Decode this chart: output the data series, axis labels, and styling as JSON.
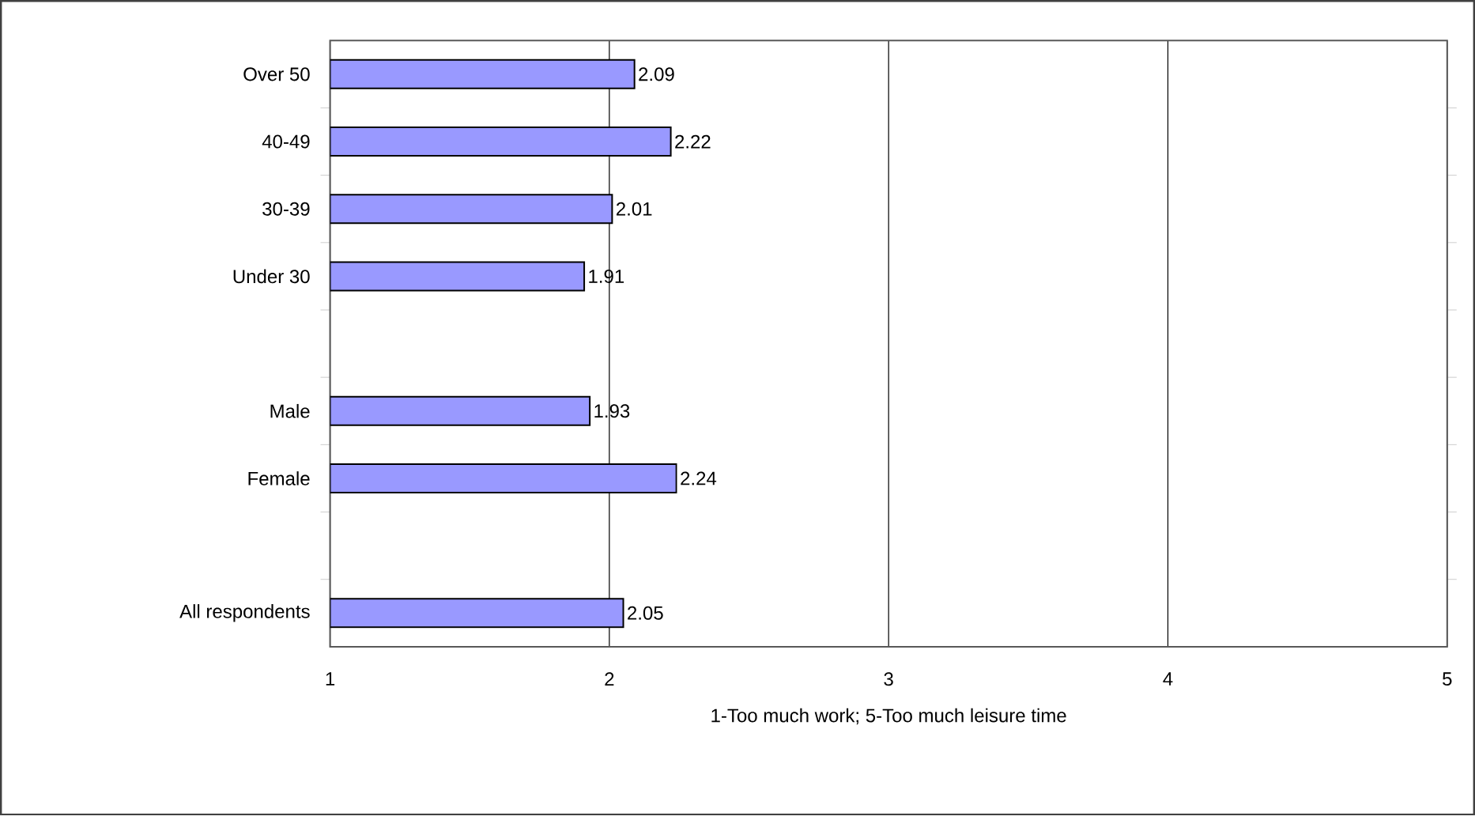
{
  "chart_data": {
    "type": "bar",
    "orientation": "horizontal",
    "categories": [
      "Over 50",
      "40-49",
      "30-39",
      "Under 30",
      null,
      "Male",
      "Female",
      null,
      "All respondents"
    ],
    "values": [
      2.09,
      2.22,
      2.01,
      1.91,
      null,
      1.93,
      2.24,
      null,
      2.05
    ],
    "color": "#9999ff",
    "data_labels": true,
    "xlim": [
      1,
      5
    ],
    "xticks": [
      1,
      2,
      3,
      4,
      5
    ],
    "grid": "x",
    "xlabel": "1-Too much work; 5-Too much leisure time"
  }
}
